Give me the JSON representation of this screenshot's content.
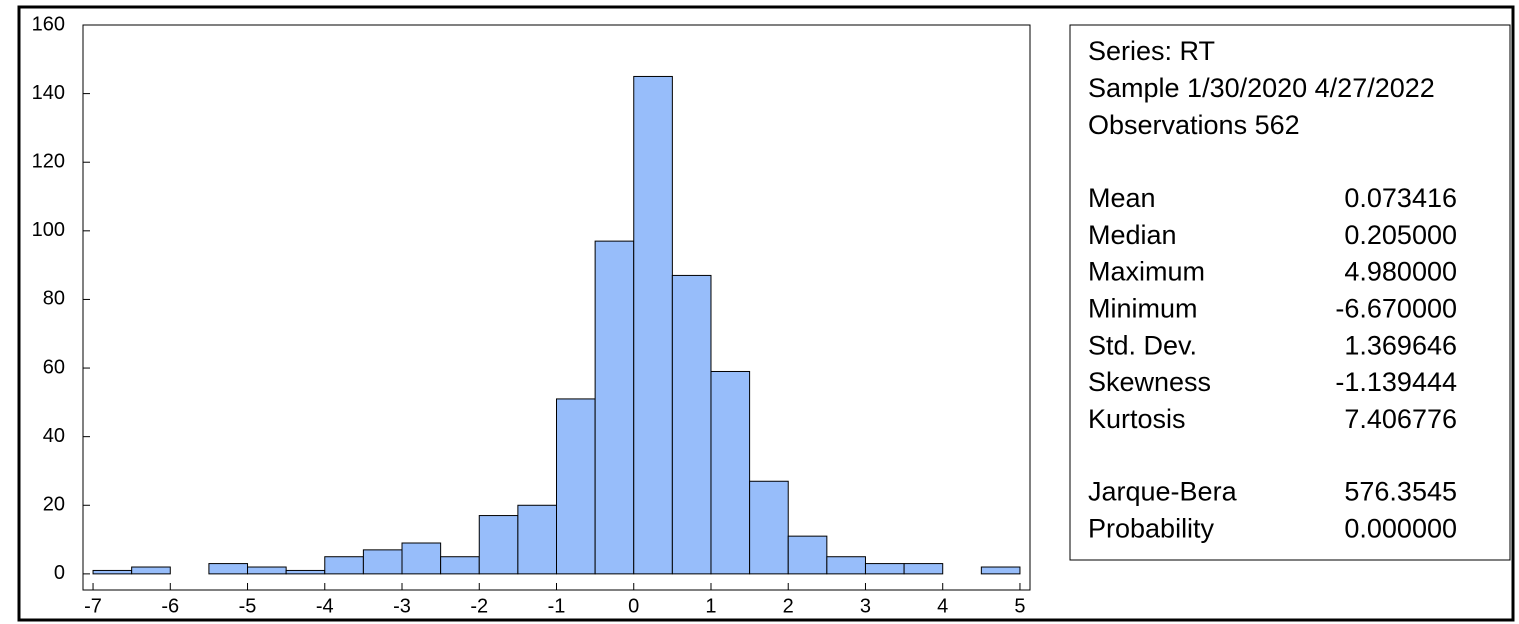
{
  "chart_data": {
    "type": "histogram",
    "bins": [
      -7,
      -6.5,
      -6,
      -5.5,
      -5,
      -4.5,
      -4,
      -3.5,
      -3,
      -2.5,
      -2,
      -1.5,
      -1,
      -0.5,
      0,
      0.5,
      1,
      1.5,
      2,
      2.5,
      3,
      3.5,
      4,
      4.5,
      5
    ],
    "values": [
      1,
      2,
      0,
      3,
      2,
      1,
      5,
      7,
      9,
      5,
      17,
      20,
      51,
      97,
      145,
      87,
      59,
      27,
      11,
      5,
      3,
      3,
      0,
      2
    ],
    "color": "#97bdfa",
    "xlim": [
      -7.13,
      5.13
    ],
    "xticks": [
      -7,
      -6,
      -5,
      -4,
      -3,
      -2,
      -1,
      0,
      1,
      2,
      3,
      4,
      5
    ],
    "ylim": [
      -4.7,
      160
    ],
    "yticks": [
      0,
      20,
      40,
      60,
      80,
      100,
      120,
      140,
      160
    ],
    "stats_header": [
      "Series: RT",
      "Sample 1/30/2020 4/27/2022",
      "Observations 562"
    ],
    "stats": [
      [
        {
          "label": "Mean",
          "value": "0.073416"
        },
        {
          "label": "Median",
          "value": "0.205000"
        },
        {
          "label": "Maximum",
          "value": "4.980000"
        },
        {
          "label": "Minimum",
          "value": "-6.670000"
        },
        {
          "label": "Std. Dev.",
          "value": "1.369646"
        },
        {
          "label": "Skewness",
          "value": "-1.139444"
        },
        {
          "label": "Kurtosis",
          "value": "7.406776"
        }
      ],
      [
        {
          "label": "Jarque-Bera",
          "value": "576.3545"
        },
        {
          "label": "Probability",
          "value": "0.000000"
        }
      ]
    ]
  }
}
